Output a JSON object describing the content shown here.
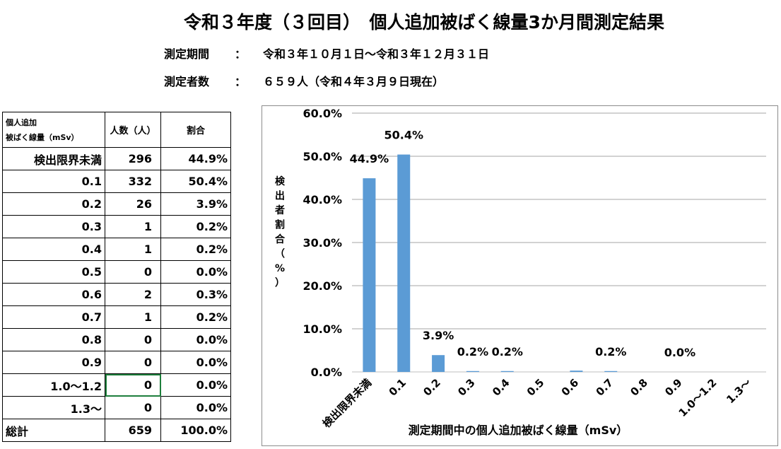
{
  "header": {
    "title": "令和３年度（３回目）　個人追加被ばく線量3か月間測定結果",
    "period_label": "測定期間",
    "period_colon": "：",
    "period_value": "令和３年１０月１日～令和３年１２月３１日",
    "count_label": "測定者数",
    "count_colon": "：",
    "count_value": "６５９人（令和４年３月９日現在）"
  },
  "table": {
    "header_col1_line1": "個人追加",
    "header_col1_line2": "被ばく線量（mSv）",
    "header_col2": "人数（人）",
    "header_col3": "割合",
    "rows": [
      {
        "dose": "検出限界未満",
        "count": "296",
        "ratio": "44.9%"
      },
      {
        "dose": "0.1",
        "count": "332",
        "ratio": "50.4%"
      },
      {
        "dose": "0.2",
        "count": "26",
        "ratio": "3.9%"
      },
      {
        "dose": "0.3",
        "count": "1",
        "ratio": "0.2%"
      },
      {
        "dose": "0.4",
        "count": "1",
        "ratio": "0.2%"
      },
      {
        "dose": "0.5",
        "count": "0",
        "ratio": "0.0%"
      },
      {
        "dose": "0.6",
        "count": "2",
        "ratio": "0.3%"
      },
      {
        "dose": "0.7",
        "count": "1",
        "ratio": "0.2%"
      },
      {
        "dose": "0.8",
        "count": "0",
        "ratio": "0.0%"
      },
      {
        "dose": "0.9",
        "count": "0",
        "ratio": "0.0%"
      },
      {
        "dose": "1.0～1.2",
        "count": "0",
        "ratio": "0.0%"
      },
      {
        "dose": "1.3～",
        "count": "0",
        "ratio": "0.0%"
      }
    ],
    "total": {
      "label": "総計",
      "count": "659",
      "ratio": "100.0%"
    }
  },
  "chart_data": {
    "type": "bar",
    "categories": [
      "検出限界未満",
      "0.1",
      "0.2",
      "0.3",
      "0.4",
      "0.5",
      "0.6",
      "0.7",
      "0.8",
      "0.9",
      "1.0～1.2",
      "1.3～"
    ],
    "values": [
      44.9,
      50.4,
      3.9,
      0.2,
      0.2,
      0.0,
      0.3,
      0.2,
      0.0,
      0.0,
      0.0,
      0.0
    ],
    "data_labels": [
      "44.9%",
      "50.4%",
      "3.9%",
      "0.2%",
      "0.2%",
      "",
      "",
      "0.2%",
      "",
      "0.0%",
      "",
      ""
    ],
    "ylim": [
      0,
      60
    ],
    "yticks": [
      "0.0%",
      "10.0%",
      "20.0%",
      "30.0%",
      "40.0%",
      "50.0%",
      "60.0%"
    ],
    "ylabel": "検出者割合（%）",
    "xlabel": "測定期間中の個人追加被ばく線量（mSv）",
    "grid": true,
    "legend": "none",
    "bar_color": "#5b9bd5"
  }
}
